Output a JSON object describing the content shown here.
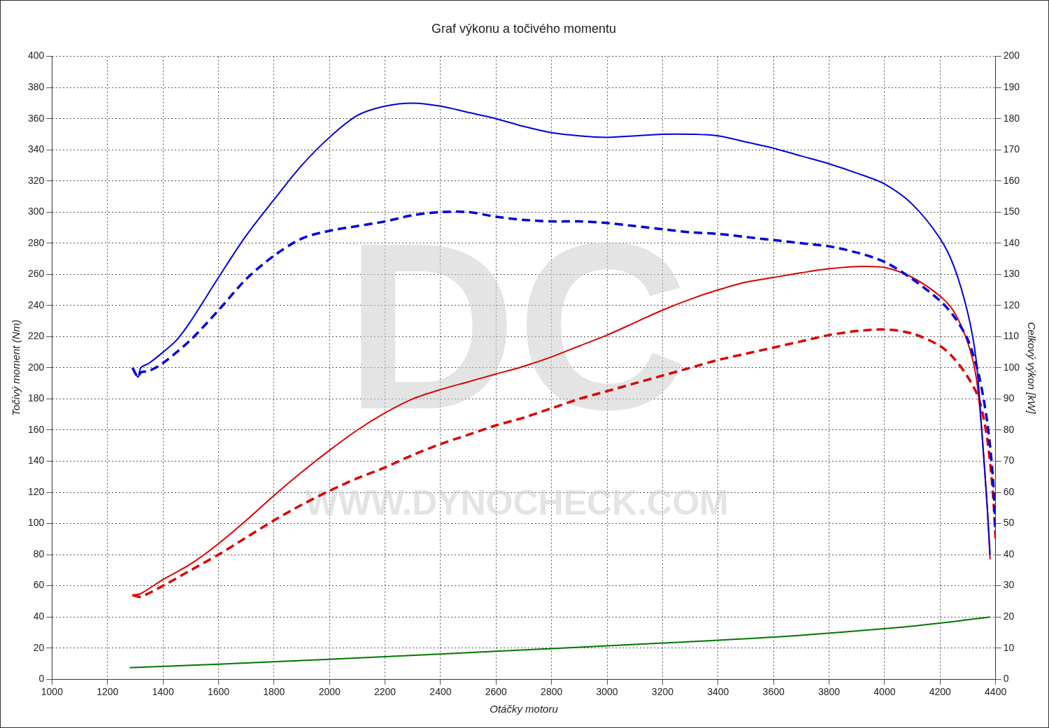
{
  "chart_data": {
    "type": "line",
    "title": "Graf výkonu a točivého momentu",
    "x_label": "Otáčky motoru",
    "y_label": "Točivý moment (Nm)",
    "y2_label": "Celkový výkon [kW]",
    "annotations": [
      {
        "text": "DC"
      },
      {
        "text": "WWW.DYNOCHECK.COM"
      }
    ],
    "xlim": [
      1000,
      4400
    ],
    "xticks": [
      1000,
      1200,
      1400,
      1600,
      1800,
      2000,
      2200,
      2400,
      2600,
      2800,
      3000,
      3200,
      3400,
      3600,
      3800,
      4000,
      4200,
      4400
    ],
    "ylim": [
      0,
      400
    ],
    "yticks": [
      0,
      20,
      40,
      60,
      80,
      100,
      120,
      140,
      160,
      180,
      200,
      220,
      240,
      260,
      280,
      300,
      320,
      340,
      360,
      380,
      400
    ],
    "y2lim": [
      0,
      200
    ],
    "y2ticks": [
      0,
      10,
      20,
      30,
      40,
      50,
      60,
      70,
      80,
      90,
      100,
      110,
      120,
      130,
      140,
      150,
      160,
      170,
      180,
      190,
      200
    ],
    "grid": true,
    "series": [
      {
        "color": "#0000dd",
        "line_style": "solid",
        "axis": "y",
        "x": [
          1290,
          1310,
          1320,
          1350,
          1400,
          1450,
          1500,
          1600,
          1700,
          1800,
          1900,
          2000,
          2100,
          2200,
          2300,
          2400,
          2500,
          2600,
          2700,
          2800,
          2900,
          3000,
          3100,
          3200,
          3300,
          3400,
          3500,
          3600,
          3700,
          3800,
          3900,
          4000,
          4100,
          4200,
          4250,
          4300,
          4330,
          4350,
          4370,
          4380
        ],
        "values": [
          200,
          194,
          200,
          203,
          210,
          218,
          230,
          258,
          285,
          308,
          330,
          348,
          362,
          368,
          370,
          368,
          364,
          360,
          355,
          351,
          349,
          348,
          349,
          350,
          350,
          349,
          345,
          341,
          336,
          331,
          325,
          318,
          305,
          283,
          265,
          235,
          205,
          160,
          110,
          80
        ]
      },
      {
        "color": "#0000dd",
        "line_style": "dashed",
        "axis": "y",
        "x": [
          1290,
          1310,
          1320,
          1350,
          1400,
          1500,
          1600,
          1700,
          1800,
          1900,
          2000,
          2100,
          2200,
          2300,
          2400,
          2500,
          2600,
          2700,
          2800,
          2900,
          3000,
          3100,
          3200,
          3300,
          3400,
          3500,
          3600,
          3700,
          3800,
          3900,
          4000,
          4100,
          4200,
          4250,
          4300,
          4340,
          4370,
          4390,
          4400
        ],
        "values": [
          200,
          194,
          197,
          198,
          203,
          218,
          237,
          257,
          272,
          283,
          288,
          291,
          294,
          298,
          300,
          300,
          297,
          295,
          294,
          294,
          293,
          291,
          289,
          287,
          286,
          284,
          282,
          280,
          278,
          274,
          268,
          257,
          243,
          233,
          218,
          195,
          165,
          130,
          95
        ]
      },
      {
        "color": "#dd0000",
        "line_style": "solid",
        "axis": "y2",
        "x": [
          1290,
          1320,
          1400,
          1500,
          1600,
          1700,
          1800,
          1900,
          2000,
          2100,
          2200,
          2300,
          2400,
          2500,
          2600,
          2700,
          2800,
          2900,
          3000,
          3100,
          3200,
          3300,
          3400,
          3500,
          3600,
          3700,
          3800,
          3900,
          4000,
          4100,
          4200,
          4250,
          4300,
          4330,
          4350,
          4370,
          4380
        ],
        "values": [
          27,
          27.5,
          32,
          37,
          43.5,
          51,
          59,
          66.5,
          73.5,
          80,
          85.5,
          90,
          93,
          95.5,
          98,
          100.5,
          103.5,
          107,
          110.5,
          114.5,
          118.5,
          122,
          125,
          127.5,
          129,
          130.5,
          131.8,
          132.5,
          132.2,
          129,
          123,
          118,
          108,
          97,
          80,
          55,
          38.5
        ]
      },
      {
        "color": "#dd0000",
        "line_style": "dashed",
        "axis": "y2",
        "x": [
          1290,
          1320,
          1400,
          1500,
          1600,
          1700,
          1800,
          1900,
          2000,
          2100,
          2200,
          2300,
          2400,
          2500,
          2600,
          2700,
          2800,
          2900,
          3000,
          3100,
          3200,
          3300,
          3400,
          3500,
          3600,
          3700,
          3800,
          3900,
          4000,
          4100,
          4200,
          4250,
          4300,
          4340,
          4370,
          4390,
          4400
        ],
        "values": [
          27,
          26.5,
          30,
          35,
          40,
          45.5,
          51,
          56,
          60.5,
          64.5,
          68,
          72,
          75.5,
          78.5,
          81.5,
          84,
          87,
          90,
          92.5,
          95,
          97.5,
          100,
          102.5,
          104.5,
          106.5,
          108.5,
          110.5,
          111.8,
          112.3,
          111,
          107,
          103,
          97,
          90,
          77,
          60,
          45
        ]
      },
      {
        "color": "#007700",
        "line_style": "solid",
        "axis": "y2",
        "x": [
          1280,
          1600,
          2000,
          2400,
          2800,
          3200,
          3600,
          4000,
          4200,
          4380
        ],
        "values": [
          3.7,
          4.8,
          6.4,
          8.1,
          9.8,
          11.6,
          13.5,
          16.2,
          18,
          20
        ]
      }
    ]
  }
}
